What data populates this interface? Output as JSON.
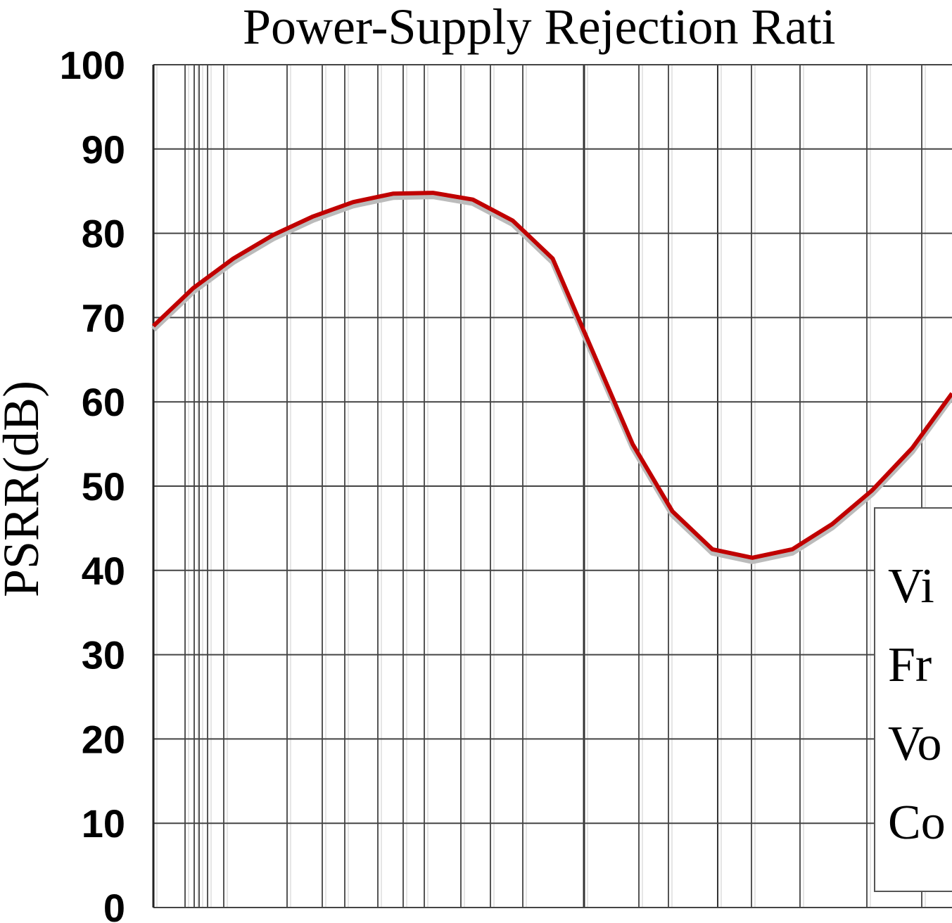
{
  "chart_data": {
    "type": "line",
    "title": "Power-Supply Rejection Rati",
    "y_label": "PSRR(dB)",
    "categories": [
      null,
      null,
      null,
      null,
      null,
      null,
      null,
      null,
      null,
      null,
      null,
      null,
      null,
      null,
      null,
      null,
      null,
      null,
      null,
      null,
      null
    ],
    "series": [
      {
        "color": "#c00000",
        "values": [
          69,
          73.5,
          77,
          79.8,
          82,
          83.7,
          84.7,
          84.8,
          84,
          81.5,
          77,
          66,
          55,
          47,
          42.5,
          41.5,
          42.5,
          45.5,
          49.5,
          54.5,
          61
        ]
      }
    ],
    "ylim": [
      0,
      100
    ],
    "yticks": [
      0,
      10,
      20,
      30,
      40,
      50,
      60,
      70,
      80,
      90,
      100
    ],
    "grid": true,
    "annotations": [
      "Vi",
      "Fr",
      "Vo",
      "Co"
    ]
  }
}
